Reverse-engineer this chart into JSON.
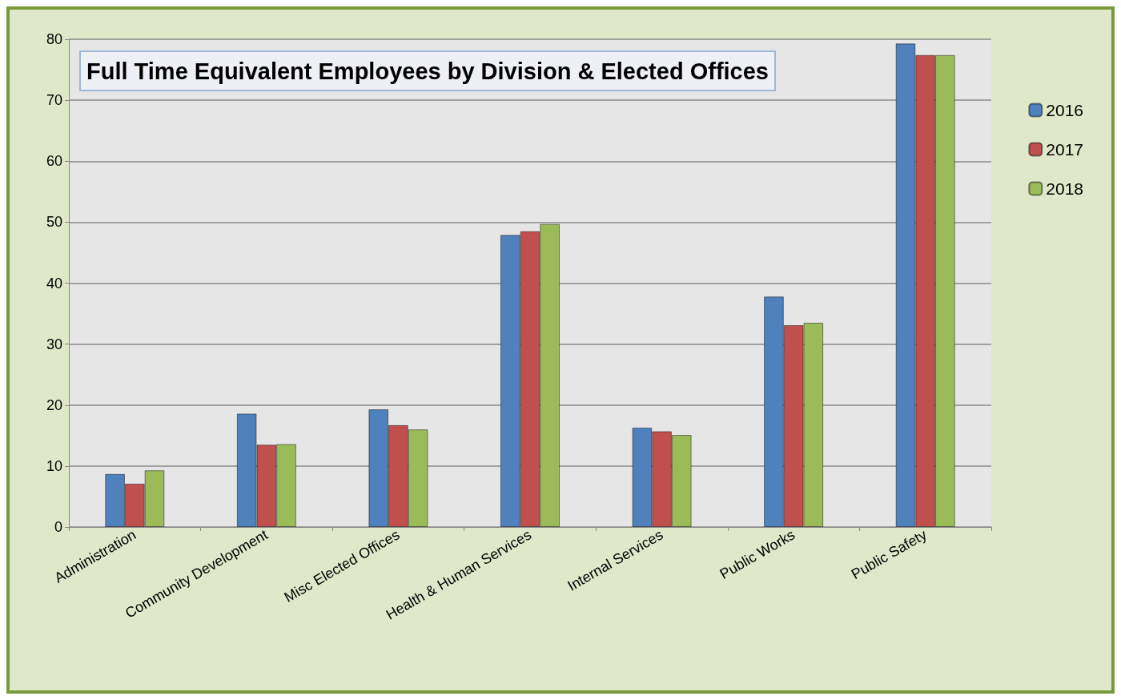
{
  "chart_data": {
    "type": "bar",
    "title": "Full Time Equivalent Employees by Division & Elected Offices",
    "categories": [
      "Administration",
      "Community Development",
      "Misc Elected Offices",
      "Health & Human Services",
      "Internal Services",
      "Public Works",
      "Public Safety"
    ],
    "series": [
      {
        "name": "2016",
        "color": "#4f81bd",
        "values": [
          8.7,
          18.6,
          19.3,
          47.9,
          16.3,
          37.8,
          79.3
        ]
      },
      {
        "name": "2017",
        "color": "#c0504d",
        "values": [
          7.1,
          13.5,
          16.7,
          48.5,
          15.7,
          33.1,
          77.4
        ]
      },
      {
        "name": "2018",
        "color": "#9bbb59",
        "values": [
          9.3,
          13.6,
          16.0,
          49.7,
          15.1,
          33.5,
          77.4
        ]
      }
    ],
    "ylim": [
      0,
      80
    ],
    "yticks": [
      0,
      10,
      20,
      30,
      40,
      50,
      60,
      70,
      80
    ],
    "grid": "y",
    "legend": "right"
  }
}
